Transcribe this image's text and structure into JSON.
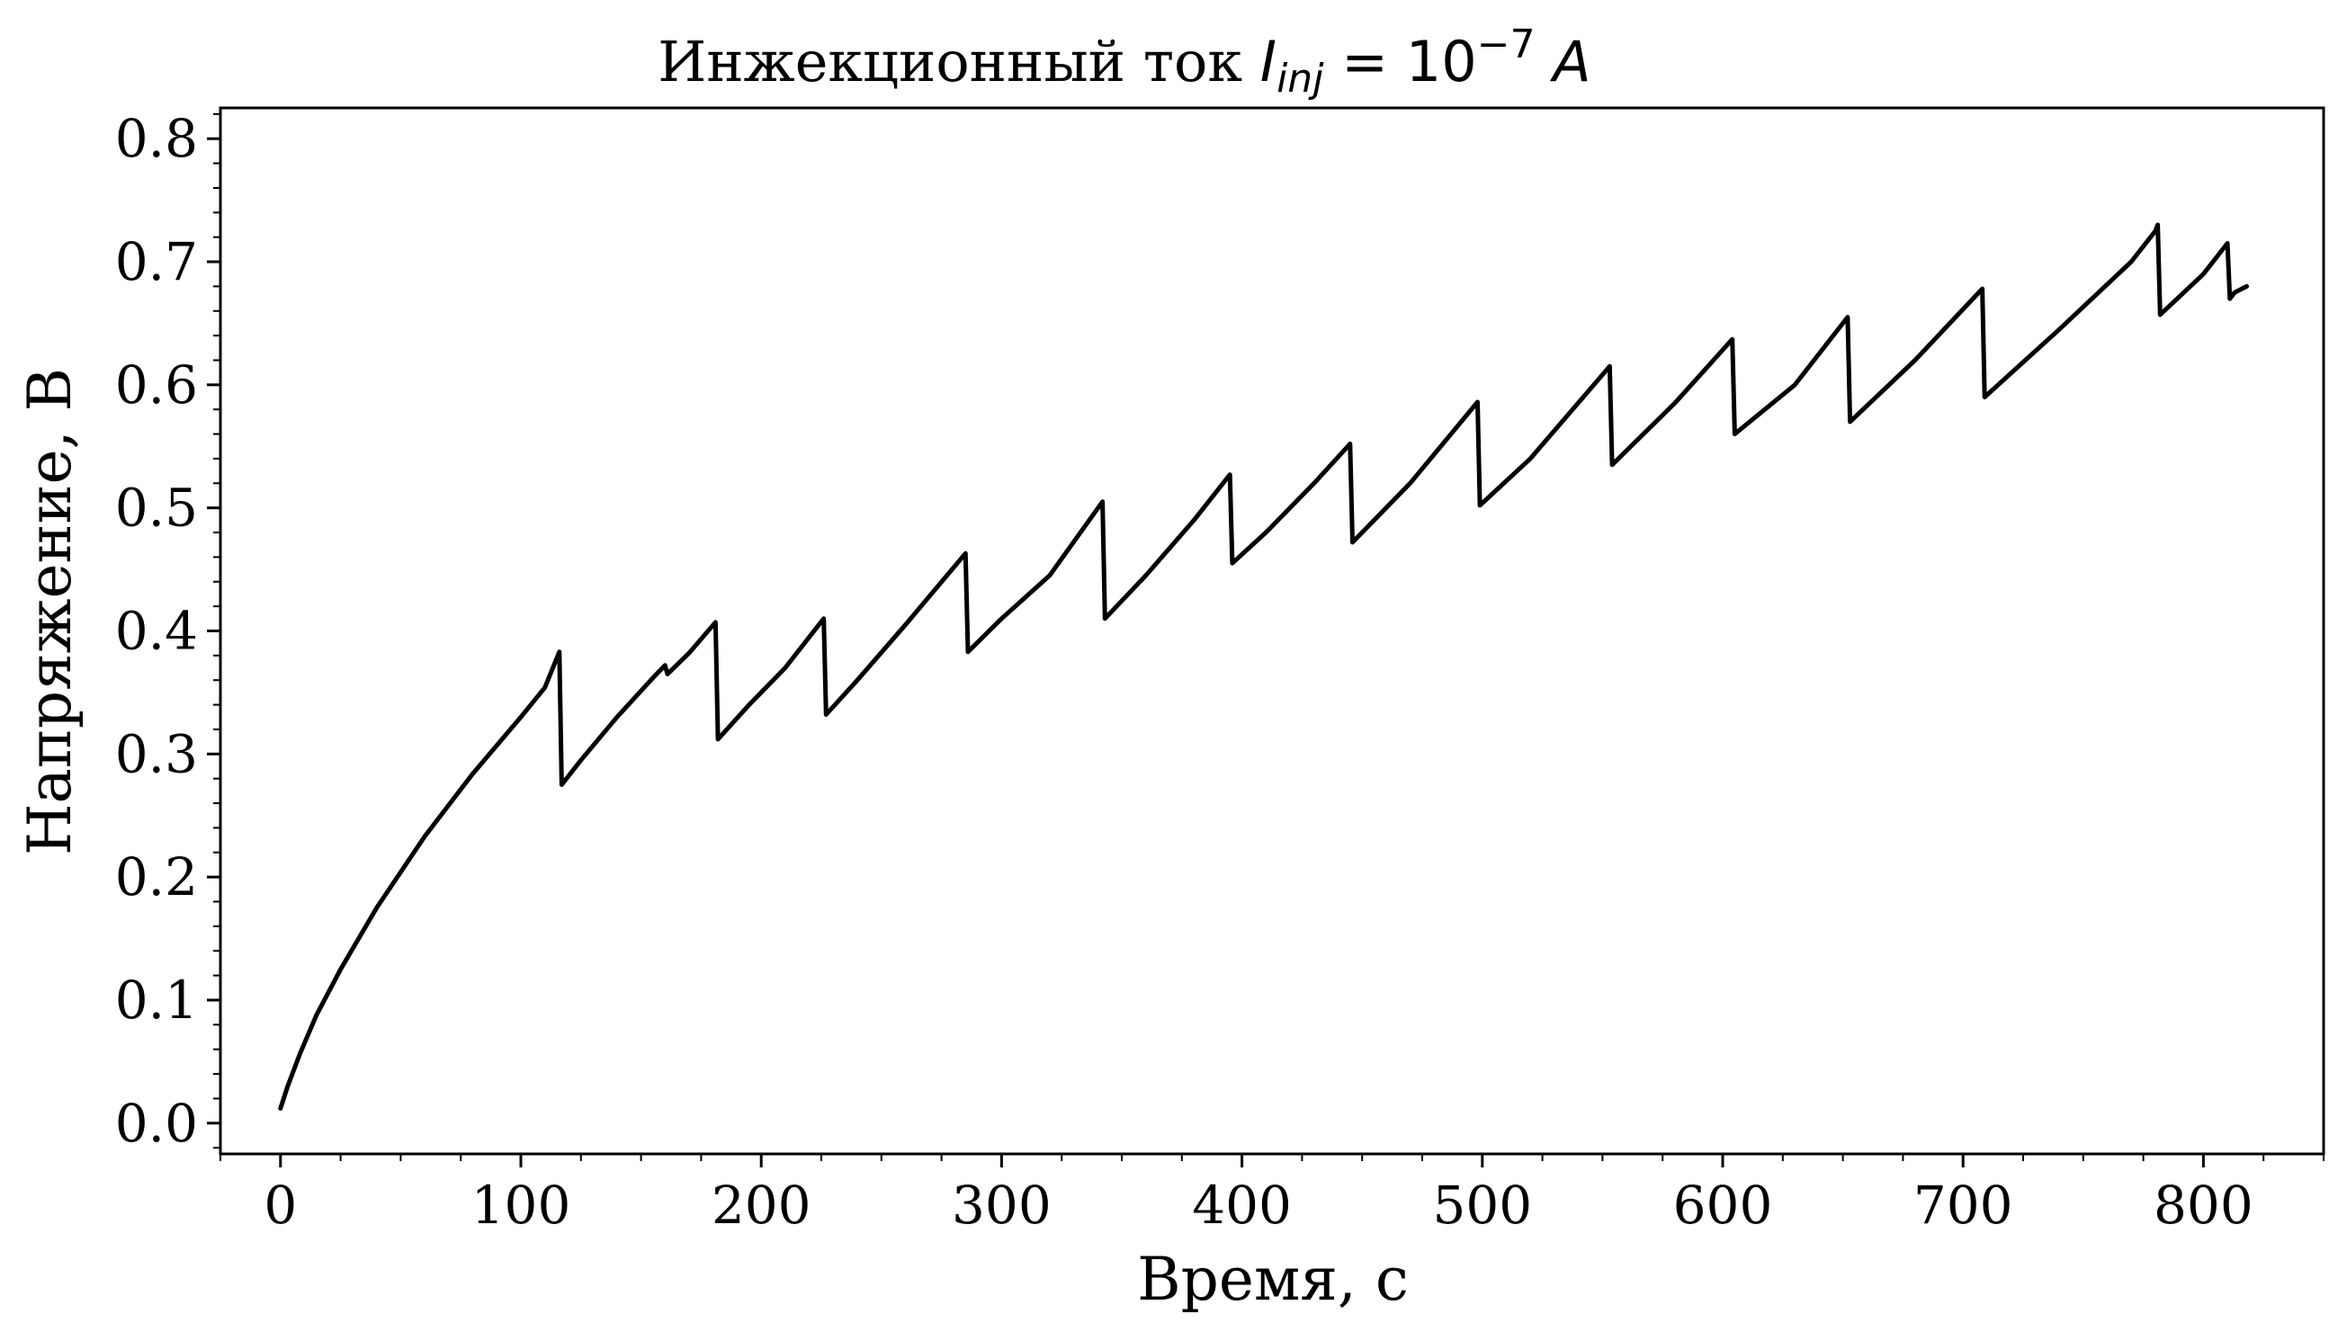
{
  "chart_data": {
    "type": "line",
    "title": {
      "prefix": "Инжекционный ток ",
      "symbol": "I",
      "subscript": "inj",
      "equals": " = ",
      "base": "10",
      "exponent": "−7",
      "unit": " A"
    },
    "xlabel": "Время, с",
    "ylabel": "Напряжение, В",
    "xlim": [
      -25,
      850
    ],
    "ylim": [
      -0.025,
      0.825
    ],
    "x_ticks": [
      0,
      100,
      200,
      300,
      400,
      500,
      600,
      700,
      800
    ],
    "x_tick_labels": [
      "0",
      "100",
      "200",
      "300",
      "400",
      "500",
      "600",
      "700",
      "800"
    ],
    "y_ticks": [
      0.0,
      0.1,
      0.2,
      0.3,
      0.4,
      0.5,
      0.6,
      0.7,
      0.8
    ],
    "y_tick_labels": [
      "0.0",
      "0.1",
      "0.2",
      "0.3",
      "0.4",
      "0.5",
      "0.6",
      "0.7",
      "0.8"
    ],
    "x_minor_step": 25,
    "y_minor_step": 0.02,
    "grid": false,
    "legend": "none",
    "line_color": "#000000",
    "series": [
      {
        "x": [
          0,
          3,
          8,
          15,
          25,
          40,
          60,
          80,
          100,
          110,
          116,
          117,
          125,
          140,
          155,
          160,
          161,
          170,
          181,
          182,
          195,
          210,
          220,
          226,
          227,
          240,
          260,
          285,
          286,
          300,
          320,
          342,
          343,
          360,
          380,
          395,
          396,
          410,
          430,
          445,
          446,
          470,
          498,
          499,
          520,
          553,
          554,
          580,
          604,
          605,
          630,
          652,
          653,
          680,
          708,
          709,
          740,
          770,
          780,
          781,
          782,
          800,
          810,
          811,
          813,
          818
        ],
        "y": [
          0.012,
          0.03,
          0.056,
          0.088,
          0.125,
          0.175,
          0.233,
          0.284,
          0.33,
          0.354,
          0.383,
          0.275,
          0.295,
          0.33,
          0.362,
          0.372,
          0.365,
          0.382,
          0.407,
          0.312,
          0.34,
          0.37,
          0.395,
          0.41,
          0.332,
          0.36,
          0.405,
          0.463,
          0.383,
          0.41,
          0.445,
          0.505,
          0.41,
          0.445,
          0.49,
          0.527,
          0.455,
          0.48,
          0.52,
          0.552,
          0.472,
          0.52,
          0.586,
          0.502,
          0.54,
          0.615,
          0.535,
          0.585,
          0.637,
          0.56,
          0.6,
          0.655,
          0.57,
          0.62,
          0.678,
          0.59,
          0.645,
          0.7,
          0.725,
          0.73,
          0.657,
          0.69,
          0.715,
          0.67,
          0.675,
          0.68
        ]
      }
    ]
  }
}
